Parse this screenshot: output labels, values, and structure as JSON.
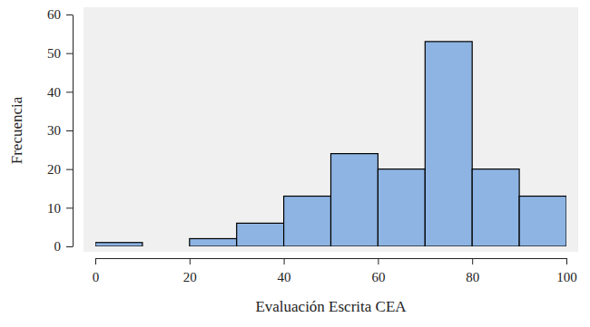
{
  "chart_data": {
    "type": "histogram",
    "x_label": "Evaluación Escrita CEA",
    "y_label": "Frecuencia",
    "bins": [
      0,
      10,
      20,
      30,
      40,
      50,
      60,
      70,
      80,
      90,
      100
    ],
    "values": [
      1,
      0,
      2,
      6,
      13,
      24,
      20,
      53,
      20,
      13
    ],
    "color": "#8eb4e3",
    "xlim": [
      0,
      100
    ],
    "xticks": [
      0,
      20,
      40,
      60,
      80,
      100
    ],
    "ylim": [
      0,
      60
    ],
    "yticks": [
      0,
      10,
      20,
      30,
      40,
      50,
      60
    ],
    "grid": false
  }
}
